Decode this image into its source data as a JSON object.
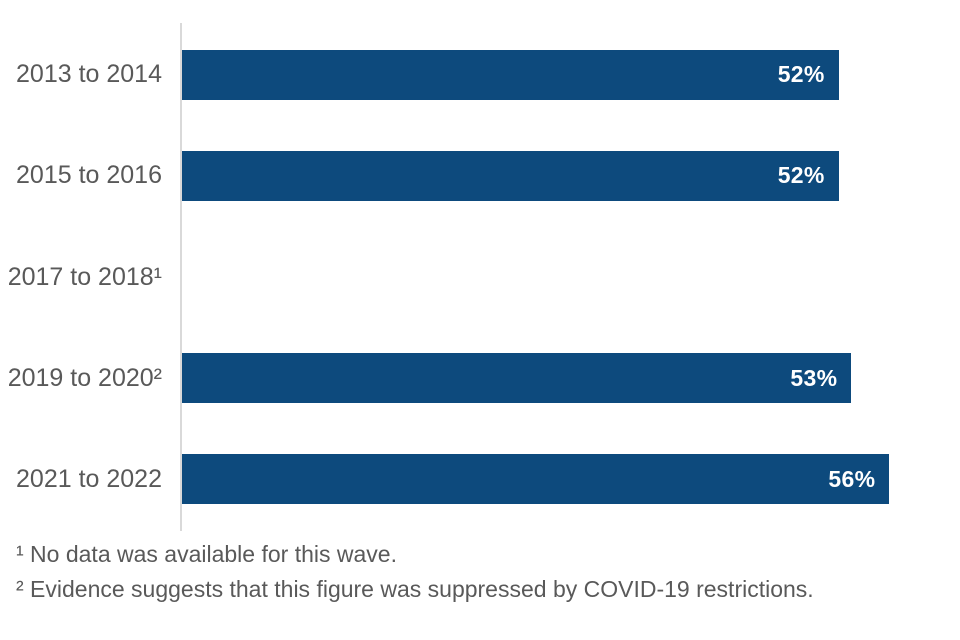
{
  "colors": {
    "background": "#ffffff",
    "bar": "#0d4a7d",
    "bar_value_text": "#ffffff",
    "category_text": "#595959",
    "footnote_text": "#595959",
    "axis_line": "#d9d9d9"
  },
  "chart_data": {
    "type": "bar",
    "orientation": "horizontal",
    "title": "",
    "xlabel": "",
    "ylabel": "",
    "categories": [
      "2013 to 2014",
      "2015 to 2016",
      "2017 to 2018¹",
      "2019 to 2020²",
      "2021 to 2022"
    ],
    "values": [
      52,
      52,
      null,
      53,
      56
    ],
    "value_labels": [
      "52%",
      "52%",
      null,
      "53%",
      "56%"
    ],
    "xlim": [
      0,
      60
    ],
    "grid": false,
    "legend": false,
    "value_label_position": "inside-end"
  },
  "footnotes": [
    "¹ No data was available for this wave.",
    "² Evidence suggests that this figure was suppressed by COVID-19 restrictions."
  ]
}
